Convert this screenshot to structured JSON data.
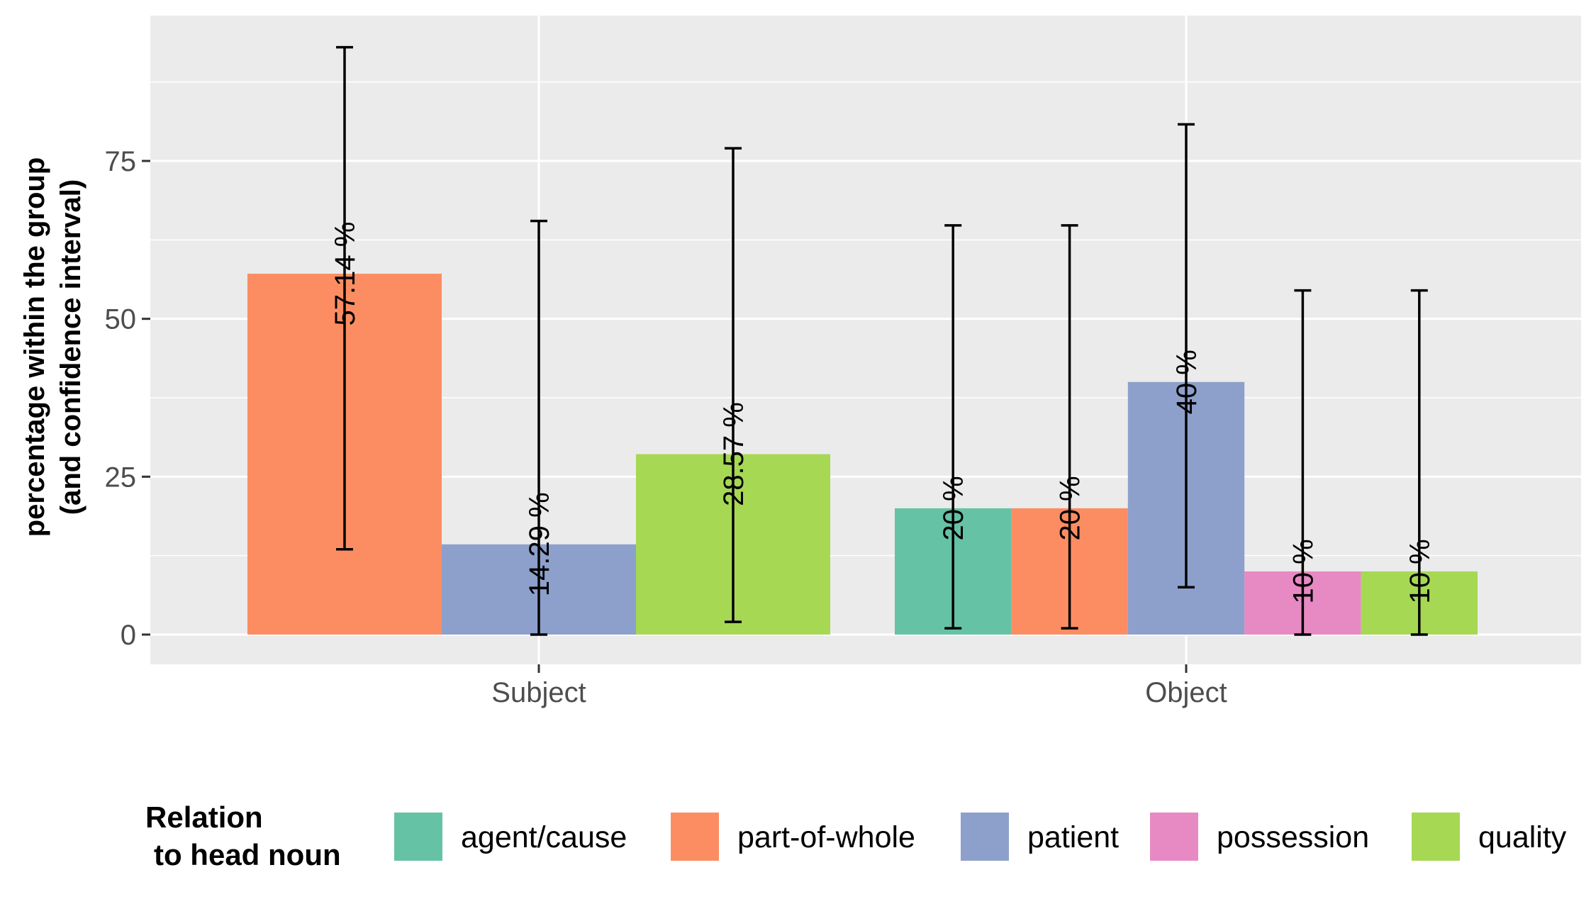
{
  "chart_data": {
    "type": "bar",
    "ylabel": [
      "percentage within the group",
      "(and confidence interval)"
    ],
    "xlabel": "",
    "ylim": [
      -4.5,
      98
    ],
    "yticks": [
      0,
      25,
      50,
      75
    ],
    "grid": true,
    "legend_position": "bottom",
    "legend_title": [
      "Relation",
      "to head noun"
    ],
    "categories": [
      "Subject",
      "Object"
    ],
    "series": [
      {
        "name": "agent/cause",
        "color": "#66C2A5"
      },
      {
        "name": "part-of-whole",
        "color": "#FC8D62"
      },
      {
        "name": "patient",
        "color": "#8DA0CB"
      },
      {
        "name": "possession",
        "color": "#E78AC3"
      },
      {
        "name": "quality",
        "color": "#A6D854"
      }
    ],
    "bars": [
      {
        "category": "Subject",
        "series": "part-of-whole",
        "value": 57.14,
        "ci": [
          13.5,
          93.0
        ],
        "label": "57.14 %"
      },
      {
        "category": "Subject",
        "series": "patient",
        "value": 14.29,
        "ci": [
          0,
          65.5
        ],
        "label": "14.29 %"
      },
      {
        "category": "Subject",
        "series": "quality",
        "value": 28.57,
        "ci": [
          2.0,
          77.0
        ],
        "label": "28.57 %"
      },
      {
        "category": "Object",
        "series": "agent/cause",
        "value": 20,
        "ci": [
          1.0,
          64.8
        ],
        "label": "20 %"
      },
      {
        "category": "Object",
        "series": "part-of-whole",
        "value": 20,
        "ci": [
          1.0,
          64.8
        ],
        "label": "20 %"
      },
      {
        "category": "Object",
        "series": "patient",
        "value": 40,
        "ci": [
          7.5,
          80.8
        ],
        "label": "40 %"
      },
      {
        "category": "Object",
        "series": "possession",
        "value": 10,
        "ci": [
          0,
          54.5
        ],
        "label": "10 %"
      },
      {
        "category": "Object",
        "series": "quality",
        "value": 10,
        "ci": [
          0,
          54.5
        ],
        "label": "10 %"
      }
    ],
    "colors": {
      "panel_background": "#EBEBEB",
      "gridline": "#FFFFFF"
    }
  }
}
